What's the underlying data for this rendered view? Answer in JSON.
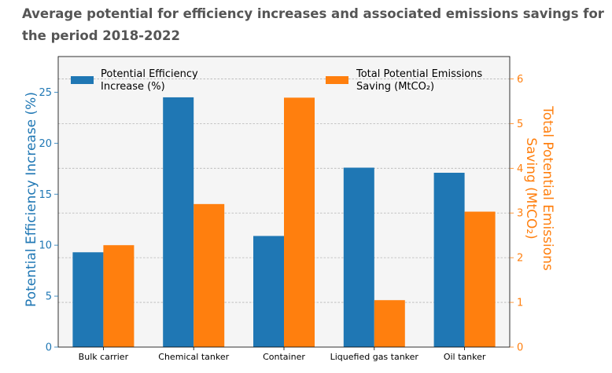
{
  "page": {
    "title": "Average potential for efficiency increases and associated emissions savings for the period 2018-2022"
  },
  "chart_data": {
    "type": "bar",
    "categories": [
      "Bulk carrier",
      "Chemical tanker",
      "Container",
      "Liquefied gas tanker",
      "Oil tanker"
    ],
    "series": [
      {
        "name": "Potential Efficiency Increase (%)",
        "legend_lines": [
          "Potential Efficiency",
          "Increase (%)"
        ],
        "axis": "left",
        "color": "#1f77b4",
        "values": [
          9.3,
          24.5,
          10.9,
          17.6,
          17.1
        ]
      },
      {
        "name": "Total Potential Emissions Saving (MtCO₂)",
        "legend_lines": [
          "Total Potential Emissions",
          "Saving (MtCO₂)"
        ],
        "axis": "right",
        "color": "#ff7f0e",
        "values": [
          2.28,
          3.2,
          5.58,
          1.05,
          3.03
        ]
      }
    ],
    "left_axis": {
      "label": "Potential Efficiency Increase (%)",
      "ylim": [
        0,
        28.5
      ],
      "ticks": [
        0,
        5,
        10,
        15,
        20,
        25
      ],
      "color": "#1f77b4"
    },
    "right_axis": {
      "label_lines": [
        "Total Potential Emissions",
        "Saving (MtCO₂)"
      ],
      "ylim": [
        0,
        6.5
      ],
      "ticks": [
        0,
        1,
        2,
        3,
        4,
        5,
        6
      ],
      "color": "#ff7f0e"
    },
    "grid": true,
    "legend": "top"
  }
}
